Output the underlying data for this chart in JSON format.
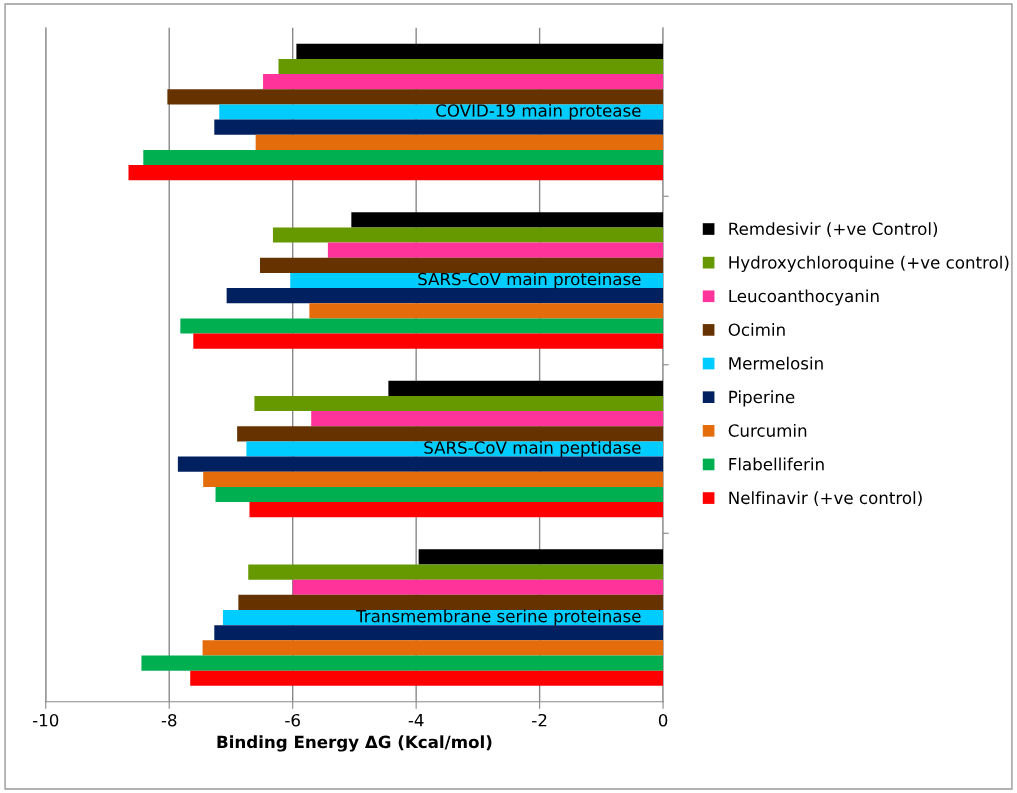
{
  "chart_data": {
    "type": "bar",
    "orientation": "horizontal",
    "xlabel": "Binding Energy ΔG (Kcal/mol)",
    "categories": [
      "COVID-19 main protease",
      "SARS-CoV main proteinase",
      "SARS-CoV main peptidase",
      "Transmembrane serine proteinase"
    ],
    "series": [
      {
        "name": "Remdesivir (+ve Control)",
        "color": "#000000",
        "values": [
          -5.94,
          -5.05,
          -4.45,
          -3.96
        ]
      },
      {
        "name": "Hydroxychloroquine (+ve control)",
        "color": "#669900",
        "values": [
          -6.23,
          -6.32,
          -6.62,
          -6.72
        ]
      },
      {
        "name": "Leucoanthocyanin",
        "color": "#ff3399",
        "values": [
          -6.48,
          -5.43,
          -5.7,
          -6.0
        ]
      },
      {
        "name": "Ocimin",
        "color": "#663300",
        "values": [
          -8.03,
          -6.53,
          -6.9,
          -6.88
        ]
      },
      {
        "name": "Mermelosin",
        "color": "#00ccff",
        "values": [
          -7.19,
          -6.04,
          -6.75,
          -7.13
        ]
      },
      {
        "name": "Piperine",
        "color": "#002060",
        "values": [
          -7.27,
          -7.07,
          -7.86,
          -7.27
        ]
      },
      {
        "name": "Curcumin",
        "color": "#e46c0a",
        "values": [
          -6.6,
          -5.73,
          -7.45,
          -7.46
        ]
      },
      {
        "name": "Flabelliferin",
        "color": "#00b050",
        "values": [
          -8.42,
          -7.82,
          -7.25,
          -8.45
        ]
      },
      {
        "name": "Nelfinavir (+ve control)",
        "color": "#ff0000",
        "values": [
          -8.66,
          -7.61,
          -6.7,
          -7.66
        ]
      }
    ],
    "xlim": [
      -10,
      0
    ],
    "xticks": [
      -10,
      -8,
      -6,
      -4,
      -2,
      0
    ],
    "grid": "x",
    "legend": "right"
  }
}
